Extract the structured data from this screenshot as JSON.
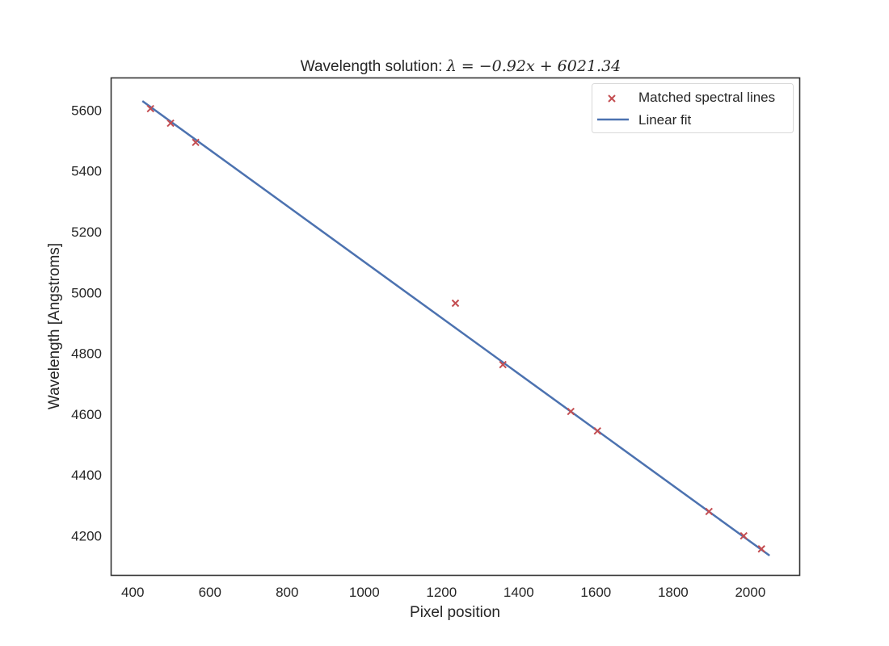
{
  "chart_data": {
    "type": "scatter",
    "title_prefix": "Wavelength solution: ",
    "title_math": "λ = −0.92x + 6021.34",
    "xlabel": "Pixel position",
    "ylabel": "Wavelength [Angstroms]",
    "xlim": [
      344,
      2128
    ],
    "ylim": [
      4070,
      5706
    ],
    "xticks": [
      400,
      600,
      800,
      1000,
      1200,
      1400,
      1600,
      1800,
      2000
    ],
    "yticks": [
      4200,
      4400,
      4600,
      4800,
      5000,
      5200,
      5400,
      5600
    ],
    "grid": false,
    "legend_position": "upper right",
    "series": [
      {
        "name": "Matched spectral lines",
        "kind": "scatter",
        "marker": "x",
        "color": "#c44e52",
        "x": [
          446,
          498,
          563,
          1236,
          1359,
          1535,
          1604,
          1893,
          1983,
          2029
        ],
        "y": [
          5605,
          5557,
          5494,
          4965,
          4763,
          4609,
          4545,
          4280,
          4200,
          4157
        ]
      },
      {
        "name": "Linear fit",
        "kind": "line",
        "color": "#4c72b0",
        "slope": -0.92,
        "intercept": 6021.34,
        "x": [
          425,
          2050
        ],
        "y": [
          5630,
          4135
        ]
      }
    ]
  }
}
